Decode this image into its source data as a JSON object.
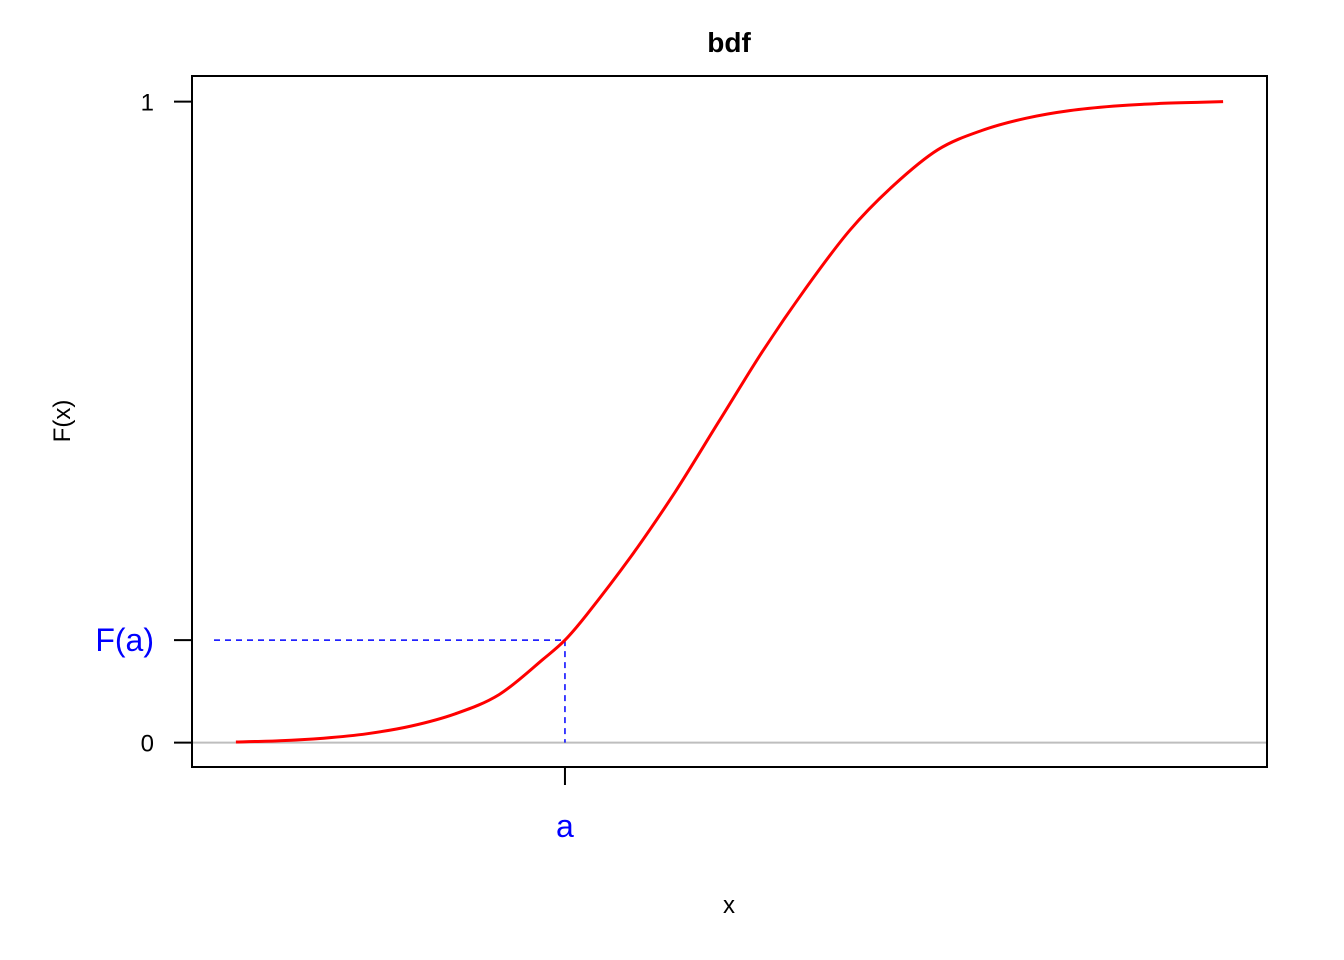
{
  "chart_data": {
    "type": "line",
    "title": "bdf",
    "xlabel": "x",
    "ylabel": "F(x)",
    "xlim": [
      -2.4,
      2.5
    ],
    "ylim": [
      -0.038,
      1.04
    ],
    "y_ticks": [
      {
        "value": 0,
        "label": "0"
      },
      {
        "value": 0.16,
        "label": "F(a)"
      },
      {
        "value": 1,
        "label": "1"
      }
    ],
    "x_ticks": [
      {
        "value": -0.7,
        "label": "a"
      }
    ],
    "series": [
      {
        "color": "#ff0000",
        "x": [
          -2.2,
          -2.0,
          -1.8,
          -1.6,
          -1.4,
          -1.2,
          -1.0,
          -0.8,
          -0.7,
          -0.6,
          -0.4,
          -0.2,
          0.0,
          0.2,
          0.4,
          0.6,
          0.8,
          1.0,
          1.2,
          1.4,
          1.6,
          1.8,
          2.0,
          2.2,
          2.3
        ],
        "y": [
          0.001,
          0.003,
          0.007,
          0.014,
          0.026,
          0.045,
          0.075,
          0.13,
          0.16,
          0.2,
          0.29,
          0.39,
          0.5,
          0.61,
          0.71,
          0.8,
          0.87,
          0.925,
          0.955,
          0.974,
          0.986,
          0.993,
          0.997,
          0.999,
          1.0
        ]
      }
    ],
    "reference_lines": [
      {
        "orientation": "horizontal",
        "y": 0,
        "color": "#bebebe"
      }
    ],
    "annotation": {
      "point": {
        "x": -0.7,
        "y": 0.16
      },
      "color": "#0000ff",
      "style": "dashed"
    },
    "highlight_color": "#0000ff",
    "grid": false
  }
}
